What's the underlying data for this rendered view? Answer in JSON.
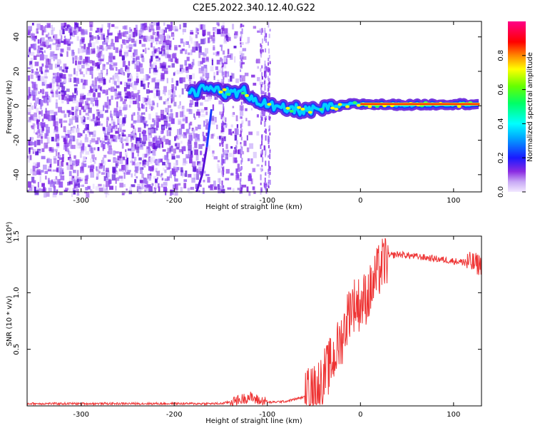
{
  "title": "C2E5.2022.340.12.40.G22",
  "chart_data": [
    {
      "type": "heatmap",
      "xlabel": "Height of straight line (km)",
      "ylabel": "Frequency (Hz)",
      "xlim": [
        -358,
        130
      ],
      "ylim": [
        -50,
        49
      ],
      "xticks": [
        -300,
        -200,
        -100,
        0,
        100
      ],
      "yticks": [
        -40,
        -20,
        0,
        20,
        40
      ],
      "colorbar": {
        "label": "Normalized spectral amplitude",
        "range": [
          0,
          1
        ],
        "ticks": [
          "0.0",
          "0.2",
          "0.4",
          "0.6",
          "0.8"
        ],
        "colormap": "rainbow (violet→blue→cyan→green→yellow→red→magenta)"
      },
      "features": {
        "noise_region_x": [
          -358,
          -100
        ],
        "signal_trace_freq_hz": [
          [
            -185,
            8
          ],
          [
            -160,
            10
          ],
          [
            -140,
            7
          ],
          [
            -125,
            8
          ],
          [
            -110,
            3
          ],
          [
            -90,
            -2
          ],
          [
            -70,
            -2
          ],
          [
            -50,
            -3
          ],
          [
            -30,
            -1
          ],
          [
            -10,
            1
          ],
          [
            0,
            1
          ],
          [
            50,
            0.5
          ],
          [
            100,
            1
          ],
          [
            128,
            1
          ]
        ],
        "descending_line": [
          [
            -165,
            -24
          ],
          [
            -170,
            -40
          ],
          [
            -176,
            -50
          ]
        ]
      }
    },
    {
      "type": "line",
      "xlabel": "Height of straight line (km)",
      "ylabel": "SNR (10 * v/v)",
      "yscale_note": "(x10⁴)",
      "xlim": [
        -358,
        130
      ],
      "ylim": [
        0,
        1.5
      ],
      "xticks": [
        -300,
        -200,
        -100,
        0,
        100
      ],
      "yticks": [
        "0.5",
        "1.0",
        "1.5"
      ],
      "series": [
        {
          "color": "#ee3333",
          "x": [
            -358,
            -300,
            -250,
            -200,
            -150,
            -130,
            -120,
            -110,
            -100,
            -80,
            -60,
            -50,
            -40,
            -30,
            -20,
            -10,
            0,
            10,
            20,
            30,
            40,
            50,
            60,
            80,
            100,
            110,
            120,
            128
          ],
          "y": [
            0.02,
            0.02,
            0.02,
            0.02,
            0.02,
            0.05,
            0.08,
            0.05,
            0.03,
            0.04,
            0.08,
            0.12,
            0.25,
            0.4,
            0.6,
            0.9,
            0.9,
            1.0,
            1.2,
            1.32,
            1.34,
            1.33,
            1.32,
            1.3,
            1.28,
            1.27,
            1.26,
            1.25
          ]
        }
      ]
    }
  ]
}
